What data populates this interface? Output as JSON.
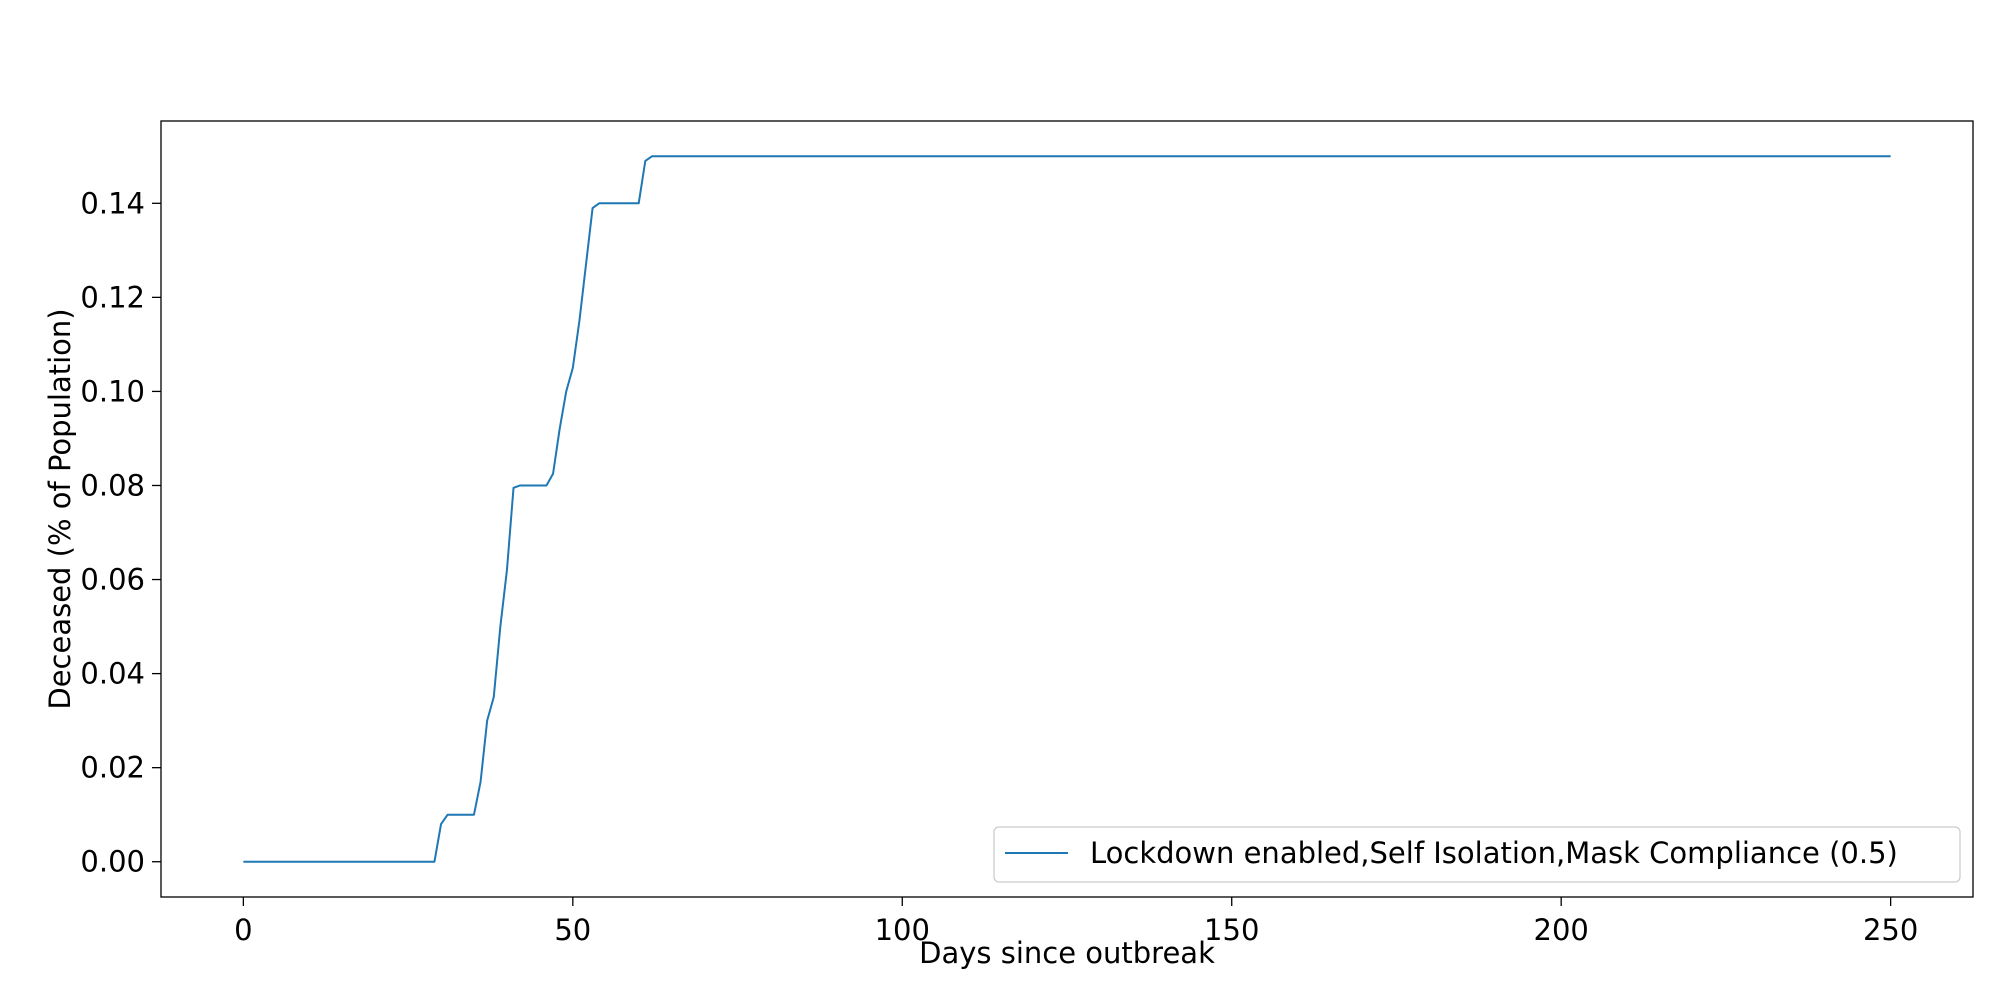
{
  "chart_data": {
    "type": "line",
    "title": "",
    "xlabel": "Days since outbreak",
    "ylabel": "Deceased (% of Population)",
    "xlim": [
      -12.5,
      262.5
    ],
    "ylim": [
      -0.0075,
      0.1575
    ],
    "xticks": [
      0,
      50,
      100,
      150,
      200,
      250
    ],
    "xtick_labels": [
      "0",
      "50",
      "100",
      "150",
      "200",
      "250"
    ],
    "yticks": [
      0.0,
      0.02,
      0.04,
      0.06,
      0.08,
      0.1,
      0.12,
      0.14
    ],
    "ytick_labels": [
      "0.00",
      "0.02",
      "0.04",
      "0.06",
      "0.08",
      "0.10",
      "0.12",
      "0.14"
    ],
    "grid": false,
    "legend_position": "lower-right",
    "series": [
      {
        "name": "Lockdown enabled,Self Isolation,Mask Compliance (0.5)",
        "color": "#1f77b4",
        "x": [
          0,
          29,
          30,
          31,
          35,
          36,
          37,
          38,
          39,
          40,
          41,
          42,
          46,
          47,
          48,
          49,
          50,
          51,
          52,
          53,
          54,
          60,
          61,
          62,
          250
        ],
        "y": [
          0.0,
          0.0,
          0.008,
          0.01,
          0.01,
          0.017,
          0.03,
          0.035,
          0.05,
          0.062,
          0.0795,
          0.08,
          0.08,
          0.0825,
          0.092,
          0.1,
          0.105,
          0.115,
          0.127,
          0.139,
          0.14,
          0.14,
          0.149,
          0.15,
          0.15
        ]
      }
    ]
  }
}
